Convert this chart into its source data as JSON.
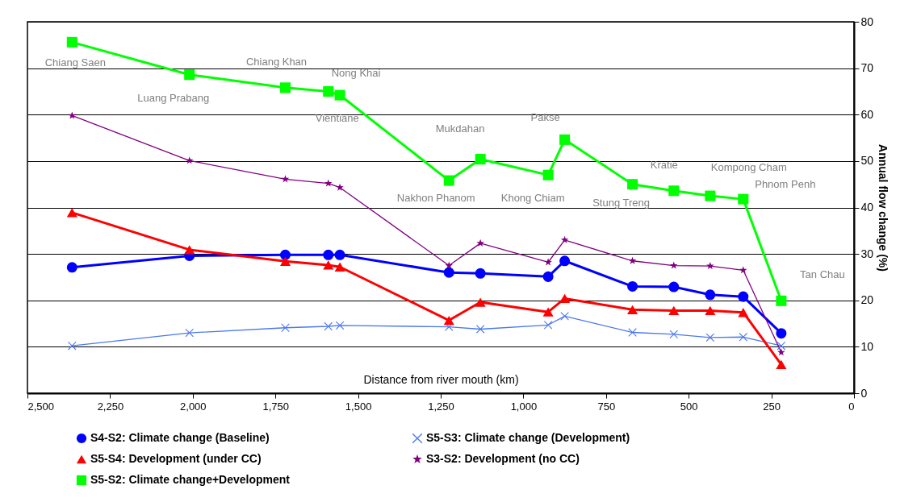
{
  "chart_data": {
    "type": "line",
    "xlabel": "Distance from river mouth (km)",
    "ylabel": "Annual flow change (%)",
    "x": [
      2365,
      2010,
      1720,
      1590,
      1555,
      1225,
      1130,
      925,
      875,
      670,
      545,
      435,
      335,
      220
    ],
    "xlim": [
      2500,
      0
    ],
    "xticks": [
      {
        "value": 2500,
        "label": "2,500"
      },
      {
        "value": 2250,
        "label": "2,250"
      },
      {
        "value": 2000,
        "label": "2,000"
      },
      {
        "value": 1750,
        "label": "1,750"
      },
      {
        "value": 1500,
        "label": "1,500"
      },
      {
        "value": 1250,
        "label": "1,250"
      },
      {
        "value": 1000,
        "label": "1,000"
      },
      750,
      500,
      250,
      0
    ],
    "ylim": [
      0,
      80
    ],
    "yticks": [
      0,
      10,
      20,
      30,
      40,
      50,
      60,
      70,
      80
    ],
    "grid": "y",
    "legend": "bottom",
    "line_style": "solid",
    "series": [
      {
        "name": "S4-S2: Climate change (Baseline)",
        "color": "#0000ff",
        "marker": "circle",
        "values": [
          27.1,
          29.6,
          29.8,
          29.8,
          29.8,
          26.0,
          25.8,
          25.1,
          28.5,
          23.0,
          22.9,
          21.2,
          20.8,
          12.9
        ]
      },
      {
        "name": "S5-S3: Climate change (Development)",
        "color": "#4a78f0",
        "marker": "cross",
        "values": [
          10.2,
          13.0,
          14.1,
          14.4,
          14.6,
          14.3,
          13.8,
          14.7,
          16.6,
          13.1,
          12.7,
          12.0,
          12.1,
          10.2
        ]
      },
      {
        "name": "S5-S4: Development (under CC)",
        "color": "#ff0000",
        "marker": "triangle",
        "values": [
          38.9,
          30.9,
          28.4,
          27.6,
          27.2,
          15.7,
          19.6,
          17.5,
          20.4,
          18.0,
          17.8,
          17.8,
          17.4,
          6.2
        ]
      },
      {
        "name": "S3-S2: Development (no CC)",
        "color": "#800080",
        "marker": "star",
        "values": [
          59.8,
          50.1,
          46.1,
          45.2,
          44.3,
          27.5,
          32.3,
          28.2,
          33.0,
          28.5,
          27.5,
          27.4,
          26.5,
          8.8
        ]
      },
      {
        "name": "S5-S2: Climate change+Development",
        "color": "#00ff00",
        "marker": "square",
        "values": [
          75.6,
          68.6,
          65.8,
          65.0,
          64.2,
          45.8,
          50.4,
          47.0,
          54.6,
          45.0,
          43.6,
          42.5,
          41.8,
          19.9
        ]
      }
    ],
    "annotations": [
      {
        "text": "Chiang Saen",
        "x": 2365,
        "y": 75.6
      },
      {
        "text": "Luang Prabang",
        "x": 2010,
        "y": 68.6
      },
      {
        "text": "Chiang Khan",
        "x": 1720,
        "y": 65.8
      },
      {
        "text": "Vientiane",
        "x": 1590,
        "y": 65.0
      },
      {
        "text": "Nong Khai",
        "x": 1555,
        "y": 64.2
      },
      {
        "text": "Nakhon Phanom",
        "x": 1225,
        "y": 45.8
      },
      {
        "text": "Mukdahan",
        "x": 1130,
        "y": 50.4
      },
      {
        "text": "Khong Chiam",
        "x": 925,
        "y": 47.0
      },
      {
        "text": "Pakse",
        "x": 875,
        "y": 54.6
      },
      {
        "text": "Stung Treng",
        "x": 670,
        "y": 45.0
      },
      {
        "text": "Kratie",
        "x": 545,
        "y": 43.6
      },
      {
        "text": "Kompong Cham",
        "x": 435,
        "y": 42.5
      },
      {
        "text": "Phnom Penh",
        "x": 335,
        "y": 41.8
      },
      {
        "text": "Tan Chau",
        "x": 220,
        "y": 19.9
      }
    ]
  }
}
